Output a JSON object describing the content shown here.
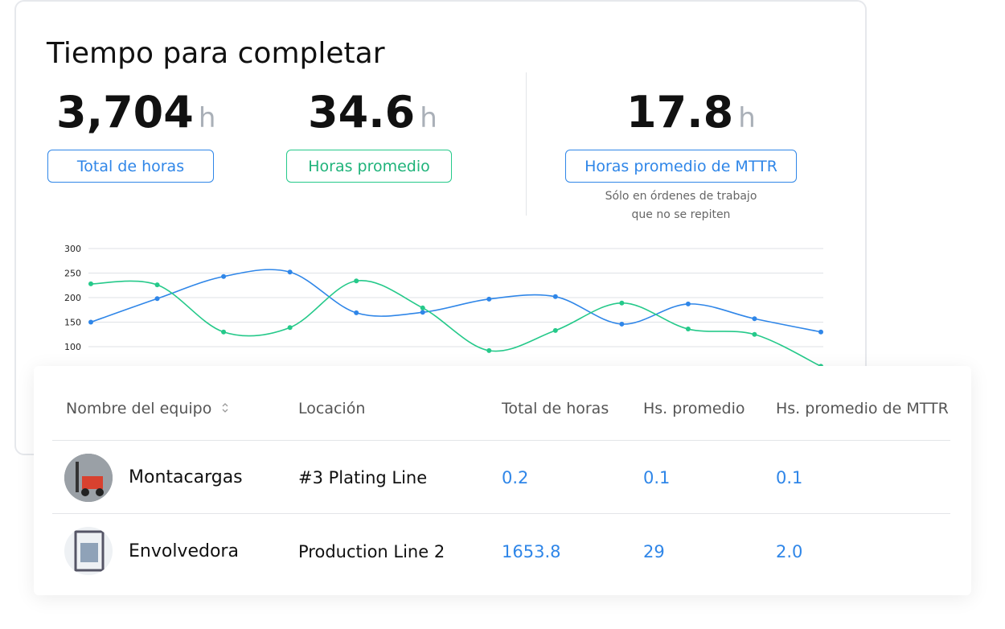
{
  "header": {
    "title": "Tiempo para completar"
  },
  "metrics": [
    {
      "value": "3,704",
      "unit": "h",
      "label": "Total de horas"
    },
    {
      "value": "34.6",
      "unit": "h",
      "label": "Horas promedio"
    },
    {
      "value": "17.8",
      "unit": "h",
      "label": "Horas promedio de MTTR"
    }
  ],
  "note": [
    "Sólo en órdenes de trabajo",
    "que no se repiten"
  ],
  "chart_data": {
    "type": "line",
    "categories": [
      null,
      null,
      null,
      null,
      null,
      null,
      null,
      null,
      null,
      null,
      null,
      null
    ],
    "series": [
      {
        "color": "#2f86e8",
        "values": [
          150,
          198,
          243,
          252,
          169,
          170,
          197,
          202,
          146,
          187,
          157,
          130
        ]
      },
      {
        "color": "#25c98a",
        "values": [
          228,
          226,
          130,
          139,
          234,
          179,
          92,
          133,
          189,
          136,
          125,
          60
        ]
      }
    ],
    "ylim": [
      0,
      300
    ],
    "yticks": [
      100,
      150,
      200,
      250,
      300
    ],
    "grid": true
  },
  "table": {
    "columns": [
      "Nombre del equipo",
      "Locación",
      "Total de horas",
      "Hs. promedio",
      "Hs. promedio de MTTR"
    ],
    "rows": [
      [
        "Montacargas",
        "#3 Plating Line",
        "0.2",
        "0.1",
        "0.1"
      ],
      [
        "Envolvedora",
        "Production Line 2",
        "1653.8",
        "29",
        "2.0"
      ]
    ]
  }
}
